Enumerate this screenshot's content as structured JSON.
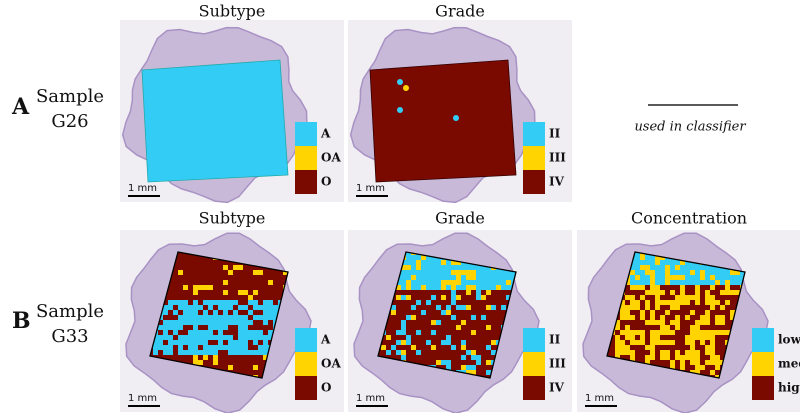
{
  "rows": [
    {
      "label": "A",
      "sample": [
        "Sample",
        "G26"
      ],
      "panels": [
        {
          "title": "Subtype",
          "legend": [
            "A",
            "OA",
            "O"
          ],
          "scale": "1 mm"
        },
        {
          "title": "Grade",
          "legend": [
            "II",
            "III",
            "IV"
          ],
          "scale": "1 mm"
        }
      ]
    },
    {
      "label": "B",
      "sample": [
        "Sample",
        "G33"
      ],
      "panels": [
        {
          "title": "Subtype",
          "legend": [
            "A",
            "OA",
            "O"
          ],
          "scale": "1 mm"
        },
        {
          "title": "Grade",
          "legend": [
            "II",
            "III",
            "IV"
          ],
          "scale": "1 mm"
        },
        {
          "title": "Concentration",
          "legend": [
            "low",
            "med",
            "high"
          ],
          "scale": "1 mm"
        }
      ]
    }
  ],
  "note": "used  in classifier"
}
